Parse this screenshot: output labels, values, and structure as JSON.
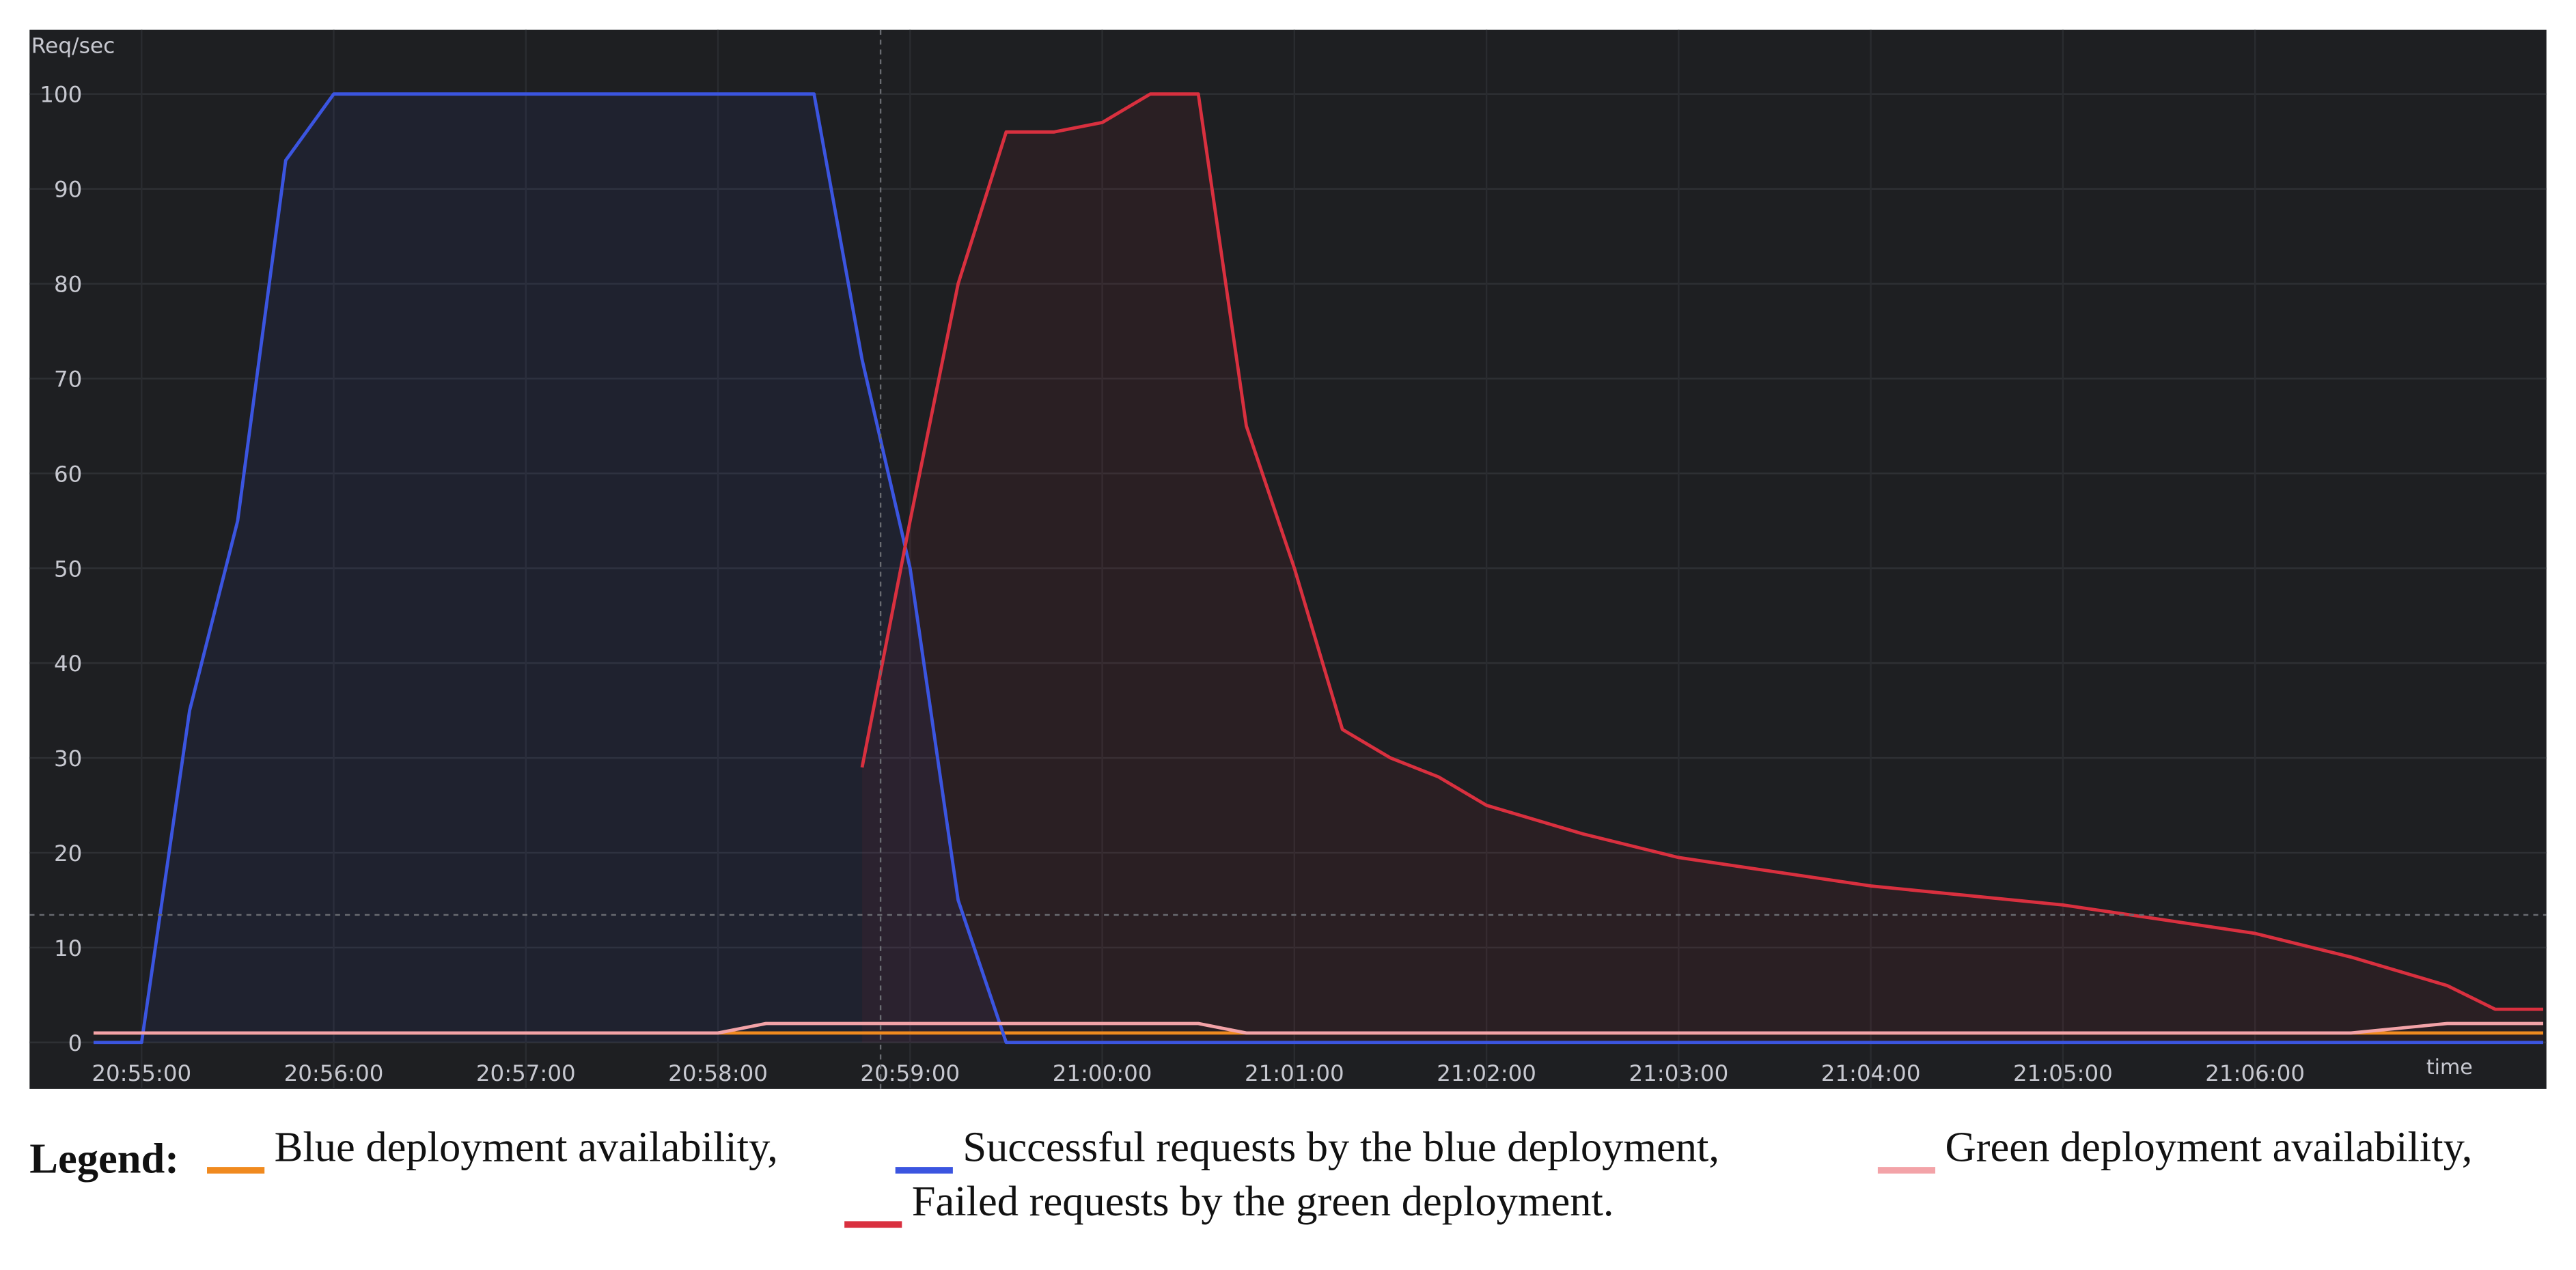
{
  "chart_data": {
    "type": "line",
    "y_label": "Req/sec",
    "x_label": "time",
    "x": [
      "20:54:45",
      "20:55:00",
      "20:55:15",
      "20:55:30",
      "20:55:45",
      "20:56:00",
      "20:56:15",
      "20:56:30",
      "20:56:45",
      "20:57:00",
      "20:57:15",
      "20:57:30",
      "20:57:45",
      "20:58:00",
      "20:58:15",
      "20:58:30",
      "20:58:45",
      "20:59:00",
      "20:59:15",
      "20:59:30",
      "20:59:45",
      "21:00:00",
      "21:00:15",
      "21:00:30",
      "21:00:45",
      "21:01:00",
      "21:01:15",
      "21:01:30",
      "21:01:45",
      "21:02:00",
      "21:02:30",
      "21:03:00",
      "21:03:30",
      "21:04:00",
      "21:04:30",
      "21:05:00",
      "21:05:30",
      "21:06:00",
      "21:06:30",
      "21:07:00",
      "21:07:15",
      "21:07:30"
    ],
    "series": [
      {
        "name": "Blue deployment availability,",
        "color": "#f08a1f",
        "values": [
          1,
          1,
          1,
          1,
          1,
          1,
          1,
          1,
          1,
          1,
          1,
          1,
          1,
          1,
          1,
          1,
          1,
          1,
          1,
          1,
          1,
          1,
          1,
          1,
          1,
          1,
          1,
          1,
          1,
          1,
          1,
          1,
          1,
          1,
          1,
          1,
          1,
          1,
          1,
          1,
          1,
          1
        ]
      },
      {
        "name": "Successful requests by the blue deployment,",
        "color": "#3b55e0",
        "area": true,
        "values": [
          0,
          0,
          35,
          55,
          93,
          100,
          100,
          100,
          100,
          100,
          100,
          100,
          100,
          100,
          100,
          100,
          72,
          50,
          15,
          0,
          0,
          0,
          0,
          0,
          0,
          0,
          0,
          0,
          0,
          0,
          0,
          0,
          0,
          0,
          0,
          0,
          0,
          0,
          0,
          0,
          0,
          0
        ]
      },
      {
        "name": "Green deployment availability,",
        "color": "#f3a3a8",
        "values": [
          1,
          1,
          1,
          1,
          1,
          1,
          1,
          1,
          1,
          1,
          1,
          1,
          1,
          1,
          2,
          2,
          2,
          2,
          2,
          2,
          2,
          2,
          2,
          2,
          1,
          1,
          1,
          1,
          1,
          1,
          1,
          1,
          1,
          1,
          1,
          1,
          1,
          1,
          1,
          2,
          2,
          2
        ]
      },
      {
        "name": "Failed requests by the green deployment.",
        "color": "#d9303f",
        "area": true,
        "values": [
          null,
          null,
          null,
          null,
          null,
          null,
          null,
          null,
          null,
          null,
          null,
          null,
          null,
          null,
          null,
          null,
          29,
          55,
          80,
          96,
          96,
          97,
          100,
          100,
          65,
          50,
          33,
          30,
          28,
          25,
          22,
          19.5,
          18,
          16.5,
          15.5,
          14.5,
          13,
          11.5,
          9,
          6,
          3.5,
          3.5
        ]
      }
    ],
    "xlim": [
      "20:54:44",
      "21:07:31"
    ],
    "xticks": [
      "20:55:00",
      "20:56:00",
      "20:57:00",
      "20:58:00",
      "20:59:00",
      "21:00:00",
      "21:01:00",
      "21:02:00",
      "21:03:00",
      "21:04:00",
      "21:05:00",
      "21:06:00"
    ],
    "ylim": [
      -3,
      104
    ],
    "yticks": [
      0,
      10,
      20,
      30,
      40,
      50,
      60,
      70,
      80,
      90,
      100
    ],
    "grid": true,
    "legend_title": "Legend:"
  }
}
